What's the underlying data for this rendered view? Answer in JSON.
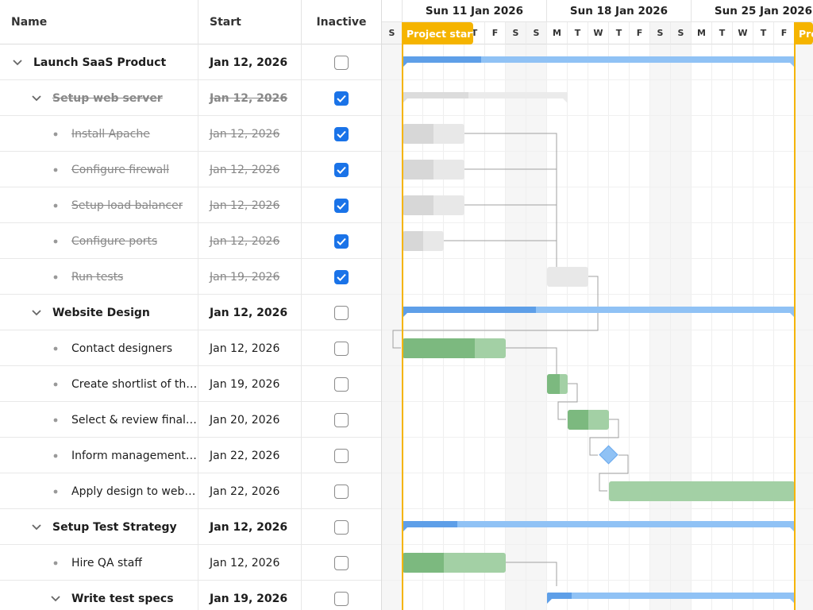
{
  "grid": {
    "headers": {
      "name": "Name",
      "start": "Start",
      "inactive": "Inactive"
    },
    "rows": [
      {
        "name": "Launch SaaS Product",
        "start": "Jan 12, 2026",
        "inactive": false,
        "type": "parent",
        "level": 0,
        "expanded": true
      },
      {
        "name": "Setup web server",
        "start": "Jan 12, 2026",
        "inactive": true,
        "type": "parent",
        "level": 1,
        "expanded": true
      },
      {
        "name": "Install Apache",
        "start": "Jan 12, 2026",
        "inactive": true,
        "type": "leaf",
        "level": 2
      },
      {
        "name": "Configure firewall",
        "start": "Jan 12, 2026",
        "inactive": true,
        "type": "leaf",
        "level": 2
      },
      {
        "name": "Setup load balancer",
        "start": "Jan 12, 2026",
        "inactive": true,
        "type": "leaf",
        "level": 2
      },
      {
        "name": "Configure ports",
        "start": "Jan 12, 2026",
        "inactive": true,
        "type": "leaf",
        "level": 2
      },
      {
        "name": "Run tests",
        "start": "Jan 19, 2026",
        "inactive": true,
        "type": "leaf",
        "level": 2
      },
      {
        "name": "Website Design",
        "start": "Jan 12, 2026",
        "inactive": false,
        "type": "parent",
        "level": 1,
        "expanded": true
      },
      {
        "name": "Contact designers",
        "start": "Jan 12, 2026",
        "inactive": false,
        "type": "leaf",
        "level": 2
      },
      {
        "name": "Create shortlist of three designers",
        "start": "Jan 19, 2026",
        "inactive": false,
        "type": "leaf",
        "level": 2
      },
      {
        "name": "Select & review final design",
        "start": "Jan 20, 2026",
        "inactive": false,
        "type": "leaf",
        "level": 2
      },
      {
        "name": "Inform management about decision",
        "start": "Jan 22, 2026",
        "inactive": false,
        "type": "leaf",
        "level": 2
      },
      {
        "name": "Apply design to website",
        "start": "Jan 22, 2026",
        "inactive": false,
        "type": "leaf",
        "level": 2
      },
      {
        "name": "Setup Test Strategy",
        "start": "Jan 12, 2026",
        "inactive": false,
        "type": "parent",
        "level": 1,
        "expanded": true
      },
      {
        "name": "Hire QA staff",
        "start": "Jan 12, 2026",
        "inactive": false,
        "type": "leaf",
        "level": 2
      },
      {
        "name": "Write test specs",
        "start": "Jan 19, 2026",
        "inactive": false,
        "type": "parent",
        "level": 2,
        "expanded": true
      }
    ]
  },
  "timeline": {
    "weeks": [
      "Sun 11 Jan 2026",
      "Sun 18 Jan 2026",
      "Sun 25 Jan 2026"
    ],
    "days": [
      "S",
      "M",
      "T",
      "W",
      "T",
      "F",
      "S",
      "S",
      "M",
      "T",
      "W",
      "T",
      "F",
      "S",
      "S",
      "M",
      "T",
      "W",
      "T",
      "F",
      "S"
    ],
    "project_start_label": "Project start",
    "project_end_label": "Project end"
  },
  "gantt": {
    "bars": [
      {
        "row": 0,
        "kind": "parent",
        "start": 1,
        "end": 20,
        "percent": 20
      },
      {
        "row": 1,
        "kind": "parent",
        "start": 1,
        "end": 9,
        "percent": 40,
        "inactive": true
      },
      {
        "row": 2,
        "kind": "task",
        "start": 1,
        "end": 4,
        "percent": 50,
        "inactive": true
      },
      {
        "row": 3,
        "kind": "task",
        "start": 1,
        "end": 4,
        "percent": 50,
        "inactive": true
      },
      {
        "row": 4,
        "kind": "task",
        "start": 1,
        "end": 4,
        "percent": 50,
        "inactive": true
      },
      {
        "row": 5,
        "kind": "task",
        "start": 1,
        "end": 3,
        "percent": 50,
        "inactive": true
      },
      {
        "row": 6,
        "kind": "task",
        "start": 8,
        "end": 10,
        "percent": 0,
        "inactive": true
      },
      {
        "row": 7,
        "kind": "parent",
        "start": 1,
        "end": 20,
        "percent": 34
      },
      {
        "row": 8,
        "kind": "task",
        "start": 1,
        "end": 6,
        "percent": 70
      },
      {
        "row": 9,
        "kind": "task",
        "start": 8,
        "end": 9,
        "percent": 60
      },
      {
        "row": 10,
        "kind": "task",
        "start": 9,
        "end": 11,
        "percent": 50
      },
      {
        "row": 11,
        "kind": "milestone",
        "start": 11
      },
      {
        "row": 12,
        "kind": "task",
        "start": 11,
        "end": 20,
        "percent": 0
      },
      {
        "row": 13,
        "kind": "parent",
        "start": 1,
        "end": 20,
        "percent": 14
      },
      {
        "row": 14,
        "kind": "task",
        "start": 1,
        "end": 6,
        "percent": 40
      },
      {
        "row": 15,
        "kind": "parent",
        "start": 8,
        "end": 20,
        "percent": 10
      }
    ],
    "dependencies": [
      [
        2,
        6
      ],
      [
        3,
        6
      ],
      [
        4,
        6
      ],
      [
        5,
        6
      ],
      [
        6,
        8
      ],
      [
        8,
        9
      ],
      [
        9,
        10
      ],
      [
        10,
        11
      ],
      [
        11,
        12
      ],
      [
        14,
        15
      ]
    ]
  },
  "colors": {
    "timeline_marker": "#f5b400",
    "task_bar": "#a3d0a5",
    "task_progress": "#7cb97f",
    "parent_bar": "#90c2f5",
    "parent_progress": "#5e9fe8",
    "checkbox_checked": "#1a73e8"
  }
}
